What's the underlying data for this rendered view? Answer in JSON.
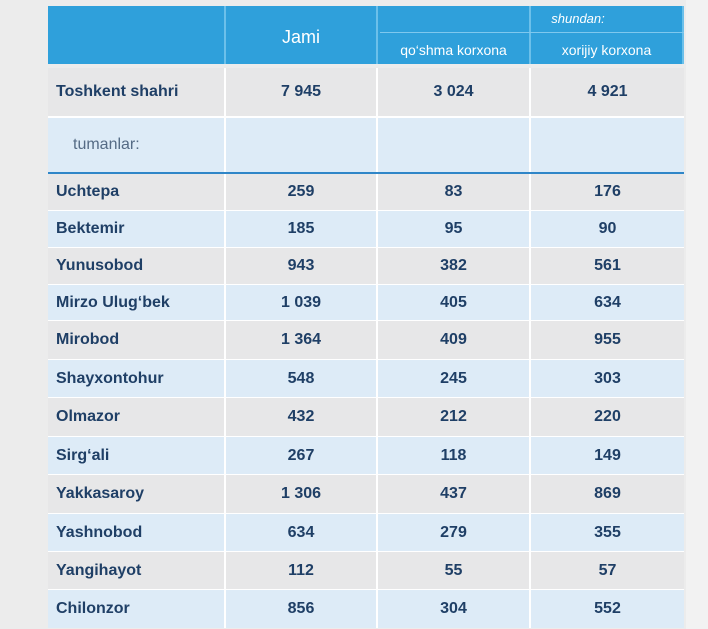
{
  "header": {
    "jami": "Jami",
    "shundan": "shundan:",
    "col_qoshma": "qo‘shma korxona",
    "col_xorijiy": "xorijiy korxona"
  },
  "total": {
    "name": "Toshkent shahri",
    "jami": "7 945",
    "qoshma": "3 024",
    "xorijiy": "4 921"
  },
  "subheader": "tumanlar:",
  "rows": [
    {
      "name": "Uchtepa",
      "jami": "259",
      "qoshma": "83",
      "xorijiy": "176"
    },
    {
      "name": "Bektemir",
      "jami": "185",
      "qoshma": "95",
      "xorijiy": "90"
    },
    {
      "name": "Yunusobod",
      "jami": "943",
      "qoshma": "382",
      "xorijiy": "561"
    },
    {
      "name": "Mirzo Ulug‘bek",
      "jami": "1 039",
      "qoshma": "405",
      "xorijiy": "634"
    },
    {
      "name": "Mirobod",
      "jami": "1 364",
      "qoshma": "409",
      "xorijiy": "955"
    },
    {
      "name": "Shayxontohur",
      "jami": "548",
      "qoshma": "245",
      "xorijiy": "303"
    },
    {
      "name": "Olmazor",
      "jami": "432",
      "qoshma": "212",
      "xorijiy": "220"
    },
    {
      "name": "Sirg‘ali",
      "jami": "267",
      "qoshma": "118",
      "xorijiy": "149"
    },
    {
      "name": "Yakkasaroy",
      "jami": "1 306",
      "qoshma": "437",
      "xorijiy": "869"
    },
    {
      "name": "Yashnobod",
      "jami": "634",
      "qoshma": "279",
      "xorijiy": "355"
    },
    {
      "name": "Yangihayot",
      "jami": "112",
      "qoshma": "55",
      "xorijiy": "57"
    },
    {
      "name": "Chilonzor",
      "jami": "856",
      "qoshma": "304",
      "xorijiy": "552"
    }
  ]
}
